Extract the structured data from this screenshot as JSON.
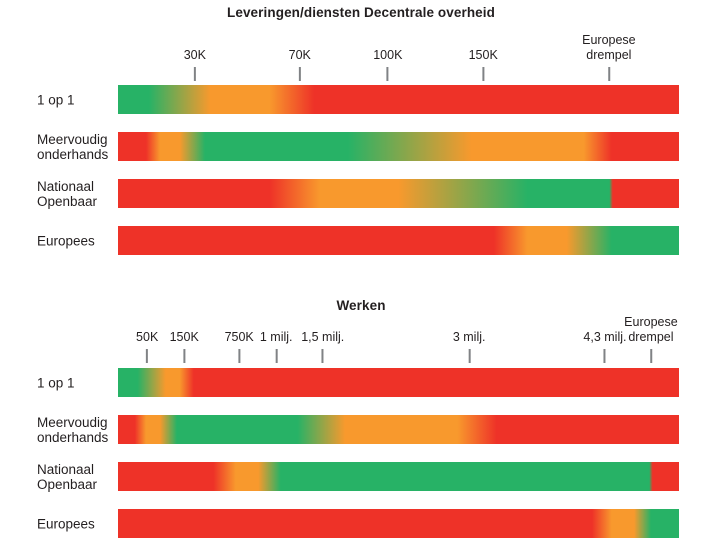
{
  "colors": {
    "green": "#27b266",
    "orange": "#f8992d",
    "red": "#ee3228",
    "text": "#231f20",
    "tick_mark": "#808285",
    "background": "#ffffff"
  },
  "chart_data": [
    {
      "type": "bar",
      "subtype": "horizontal-gradient-suitability",
      "orientation": "horizontal",
      "title": "Leveringen/diensten Decentrale overheid",
      "color_meaning": {
        "green": "suitable",
        "orange": "intermediate",
        "red": "not suitable"
      },
      "ticks": [
        {
          "label": "30K",
          "pos": 13.7
        },
        {
          "label": "70K",
          "pos": 32.4
        },
        {
          "label": "100K",
          "pos": 48.1
        },
        {
          "label": "150K",
          "pos": 65.1
        },
        {
          "label": "Europese\ndrempel",
          "pos": 87.5
        }
      ],
      "rows": [
        {
          "label": "1 op 1",
          "stops": [
            {
              "c": "green",
              "p": 0
            },
            {
              "c": "green",
              "p": 5.5
            },
            {
              "c": "orange",
              "p": 16.5
            },
            {
              "c": "orange",
              "p": 27
            },
            {
              "c": "red",
              "p": 35
            },
            {
              "c": "red",
              "p": 100
            }
          ]
        },
        {
          "label": "Meervoudig onderhands",
          "stops": [
            {
              "c": "red",
              "p": 0
            },
            {
              "c": "red",
              "p": 5
            },
            {
              "c": "orange",
              "p": 7.5
            },
            {
              "c": "orange",
              "p": 11
            },
            {
              "c": "green",
              "p": 15.5
            },
            {
              "c": "green",
              "p": 41
            },
            {
              "c": "orange",
              "p": 63
            },
            {
              "c": "orange",
              "p": 83
            },
            {
              "c": "red",
              "p": 88
            },
            {
              "c": "red",
              "p": 100
            }
          ]
        },
        {
          "label": "Nationaal Openbaar",
          "stops": [
            {
              "c": "red",
              "p": 0
            },
            {
              "c": "red",
              "p": 27
            },
            {
              "c": "orange",
              "p": 36
            },
            {
              "c": "orange",
              "p": 50
            },
            {
              "c": "green",
              "p": 73
            },
            {
              "c": "green",
              "p": 87.6
            },
            {
              "c": "red",
              "p": 88.2
            },
            {
              "c": "red",
              "p": 100
            }
          ]
        },
        {
          "label": "Europees",
          "stops": [
            {
              "c": "red",
              "p": 0
            },
            {
              "c": "red",
              "p": 67
            },
            {
              "c": "orange",
              "p": 73
            },
            {
              "c": "orange",
              "p": 80
            },
            {
              "c": "green",
              "p": 88
            },
            {
              "c": "green",
              "p": 100
            }
          ]
        }
      ]
    },
    {
      "type": "bar",
      "subtype": "horizontal-gradient-suitability",
      "orientation": "horizontal",
      "title": "Werken",
      "color_meaning": {
        "green": "suitable",
        "orange": "intermediate",
        "red": "not suitable"
      },
      "ticks": [
        {
          "label": "50K",
          "pos": 5.2
        },
        {
          "label": "150K",
          "pos": 11.8
        },
        {
          "label": "750K",
          "pos": 21.6
        },
        {
          "label": "1 milj.",
          "pos": 28.2
        },
        {
          "label": "1,5 milj.",
          "pos": 36.5
        },
        {
          "label": "3 milj.",
          "pos": 62.6
        },
        {
          "label": "4,3 milj.",
          "pos": 86.8
        },
        {
          "label": "Europese\ndrempel",
          "pos": 95.0
        }
      ],
      "rows": [
        {
          "label": "1 op 1",
          "stops": [
            {
              "c": "green",
              "p": 0
            },
            {
              "c": "green",
              "p": 3.5
            },
            {
              "c": "orange",
              "p": 8.5
            },
            {
              "c": "orange",
              "p": 11
            },
            {
              "c": "red",
              "p": 13.5
            },
            {
              "c": "red",
              "p": 100
            }
          ]
        },
        {
          "label": "Meervoudig onderhands",
          "stops": [
            {
              "c": "red",
              "p": 0
            },
            {
              "c": "red",
              "p": 3
            },
            {
              "c": "orange",
              "p": 5
            },
            {
              "c": "orange",
              "p": 7.5
            },
            {
              "c": "green",
              "p": 10.5
            },
            {
              "c": "green",
              "p": 32
            },
            {
              "c": "orange",
              "p": 40.5
            },
            {
              "c": "orange",
              "p": 60.5
            },
            {
              "c": "red",
              "p": 67.5
            },
            {
              "c": "red",
              "p": 100
            }
          ]
        },
        {
          "label": "Nationaal Openbaar",
          "stops": [
            {
              "c": "red",
              "p": 0
            },
            {
              "c": "red",
              "p": 17
            },
            {
              "c": "orange",
              "p": 21
            },
            {
              "c": "orange",
              "p": 25
            },
            {
              "c": "green",
              "p": 29
            },
            {
              "c": "green",
              "p": 94.7
            },
            {
              "c": "red",
              "p": 95.3
            },
            {
              "c": "red",
              "p": 100
            }
          ]
        },
        {
          "label": "Europees",
          "stops": [
            {
              "c": "red",
              "p": 0
            },
            {
              "c": "red",
              "p": 84.5
            },
            {
              "c": "orange",
              "p": 88
            },
            {
              "c": "orange",
              "p": 92
            },
            {
              "c": "green",
              "p": 95
            },
            {
              "c": "green",
              "p": 100
            }
          ]
        }
      ]
    }
  ]
}
